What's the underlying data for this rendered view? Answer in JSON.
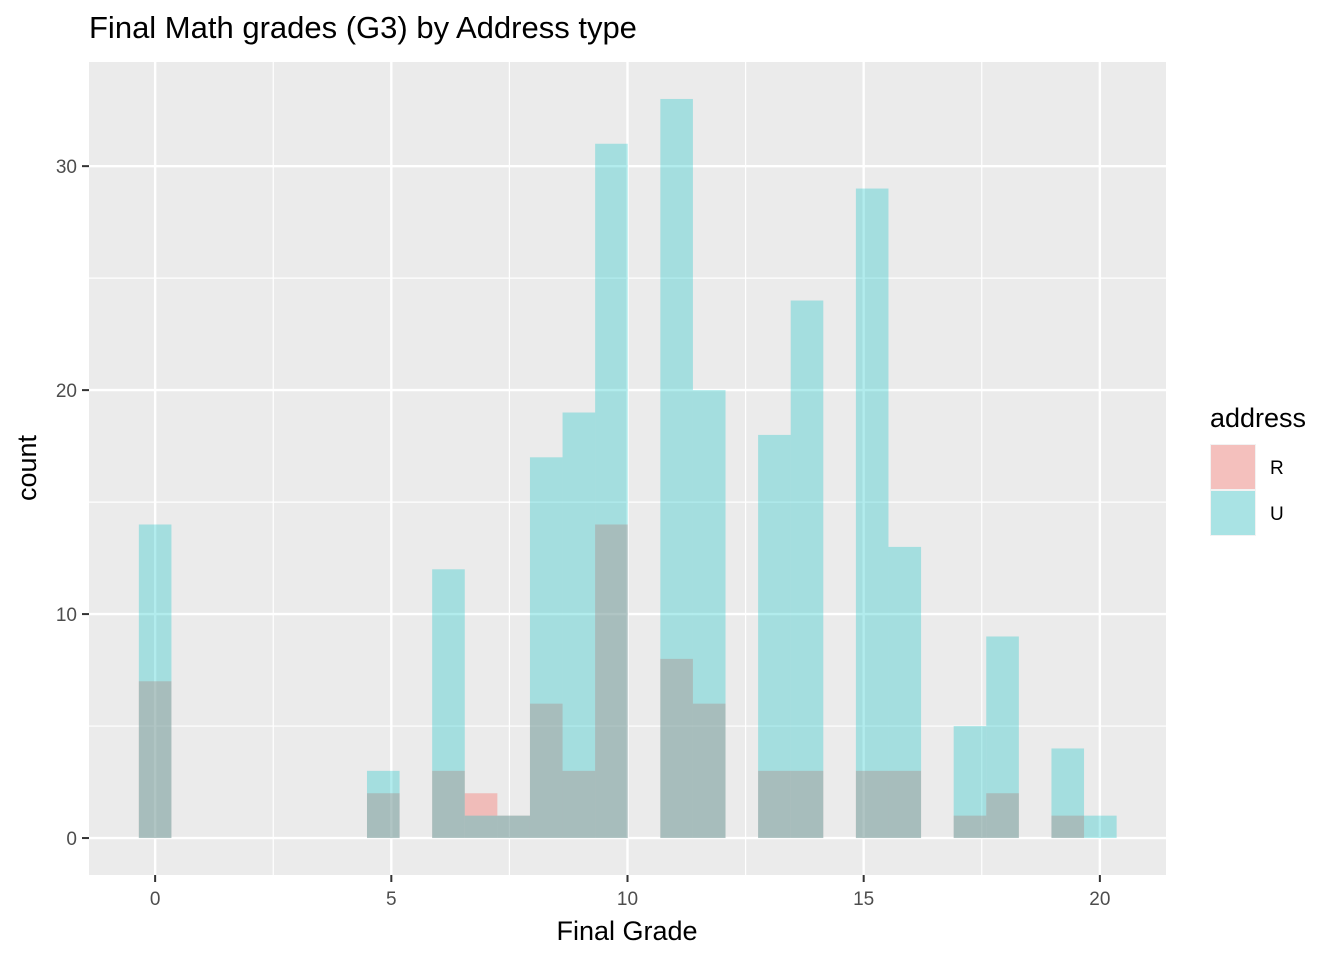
{
  "chart_data": {
    "type": "histogram",
    "title": "Final Math grades (G3) by Address type",
    "xlabel": "Final Grade",
    "ylabel": "count",
    "xlim": [
      -1.4,
      21.4
    ],
    "ylim": [
      -1.65,
      34.65
    ],
    "x_ticks": [
      0,
      5,
      10,
      15,
      20
    ],
    "y_ticks": [
      0,
      10,
      20,
      30
    ],
    "bin_width": 0.69,
    "grid": true,
    "legend": {
      "title": "address",
      "position": "right"
    },
    "series": [
      {
        "name": "R",
        "color": "#F8766D",
        "opacity": 0.4,
        "x": [
          0,
          4.83,
          6.21,
          6.9,
          7.59,
          8.28,
          8.97,
          9.66,
          11.04,
          11.73,
          13.11,
          13.8,
          15.18,
          15.87,
          17.25,
          17.94,
          19.32
        ],
        "values": [
          7,
          2,
          3,
          2,
          1,
          6,
          3,
          14,
          8,
          6,
          3,
          3,
          3,
          3,
          1,
          2,
          1
        ]
      },
      {
        "name": "U",
        "color": "#00BFC4",
        "opacity": 0.3,
        "x": [
          0,
          4.83,
          6.21,
          6.9,
          7.59,
          8.28,
          8.97,
          9.66,
          11.04,
          11.73,
          13.11,
          13.8,
          15.18,
          15.87,
          17.25,
          17.94,
          19.32,
          20.01
        ],
        "values": [
          14,
          3,
          12,
          1,
          1,
          17,
          19,
          31,
          33,
          20,
          18,
          24,
          29,
          13,
          5,
          9,
          4,
          1
        ]
      }
    ]
  }
}
